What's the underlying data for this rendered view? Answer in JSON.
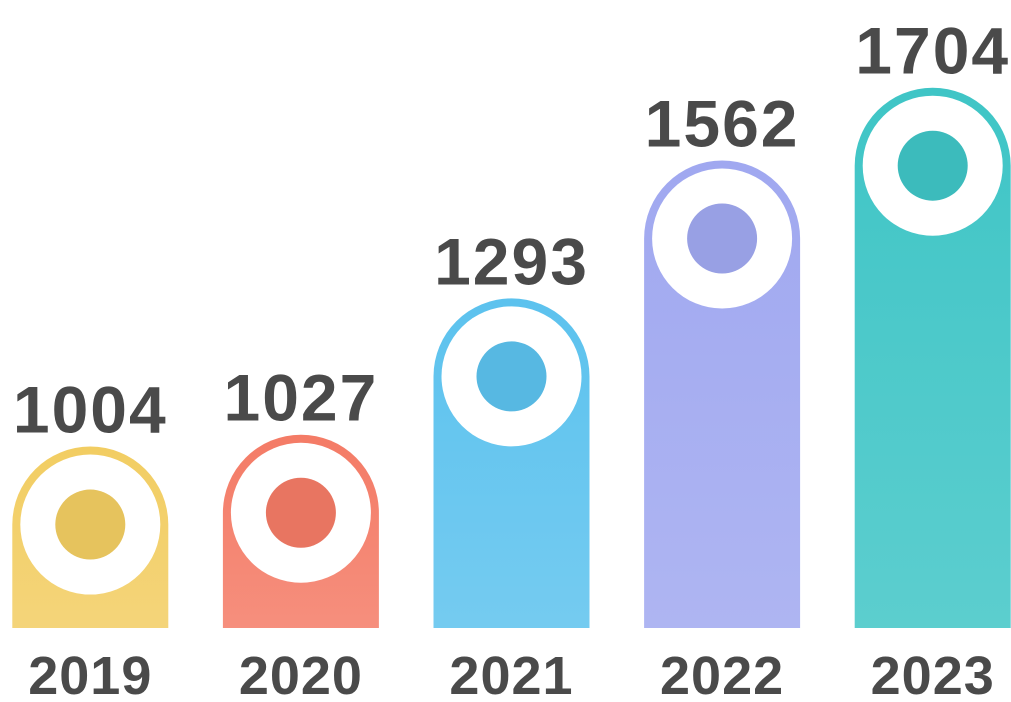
{
  "chart_data": {
    "type": "bar",
    "categories": [
      "2019",
      "2020",
      "2021",
      "2022",
      "2023"
    ],
    "values": [
      1004,
      1027,
      1293,
      1562,
      1704
    ],
    "colors": [
      "#f2cd62",
      "#f47b66",
      "#5cc2ee",
      "#a0a8f0",
      "#3fc5c6"
    ],
    "ylim": [
      650,
      1760
    ]
  }
}
